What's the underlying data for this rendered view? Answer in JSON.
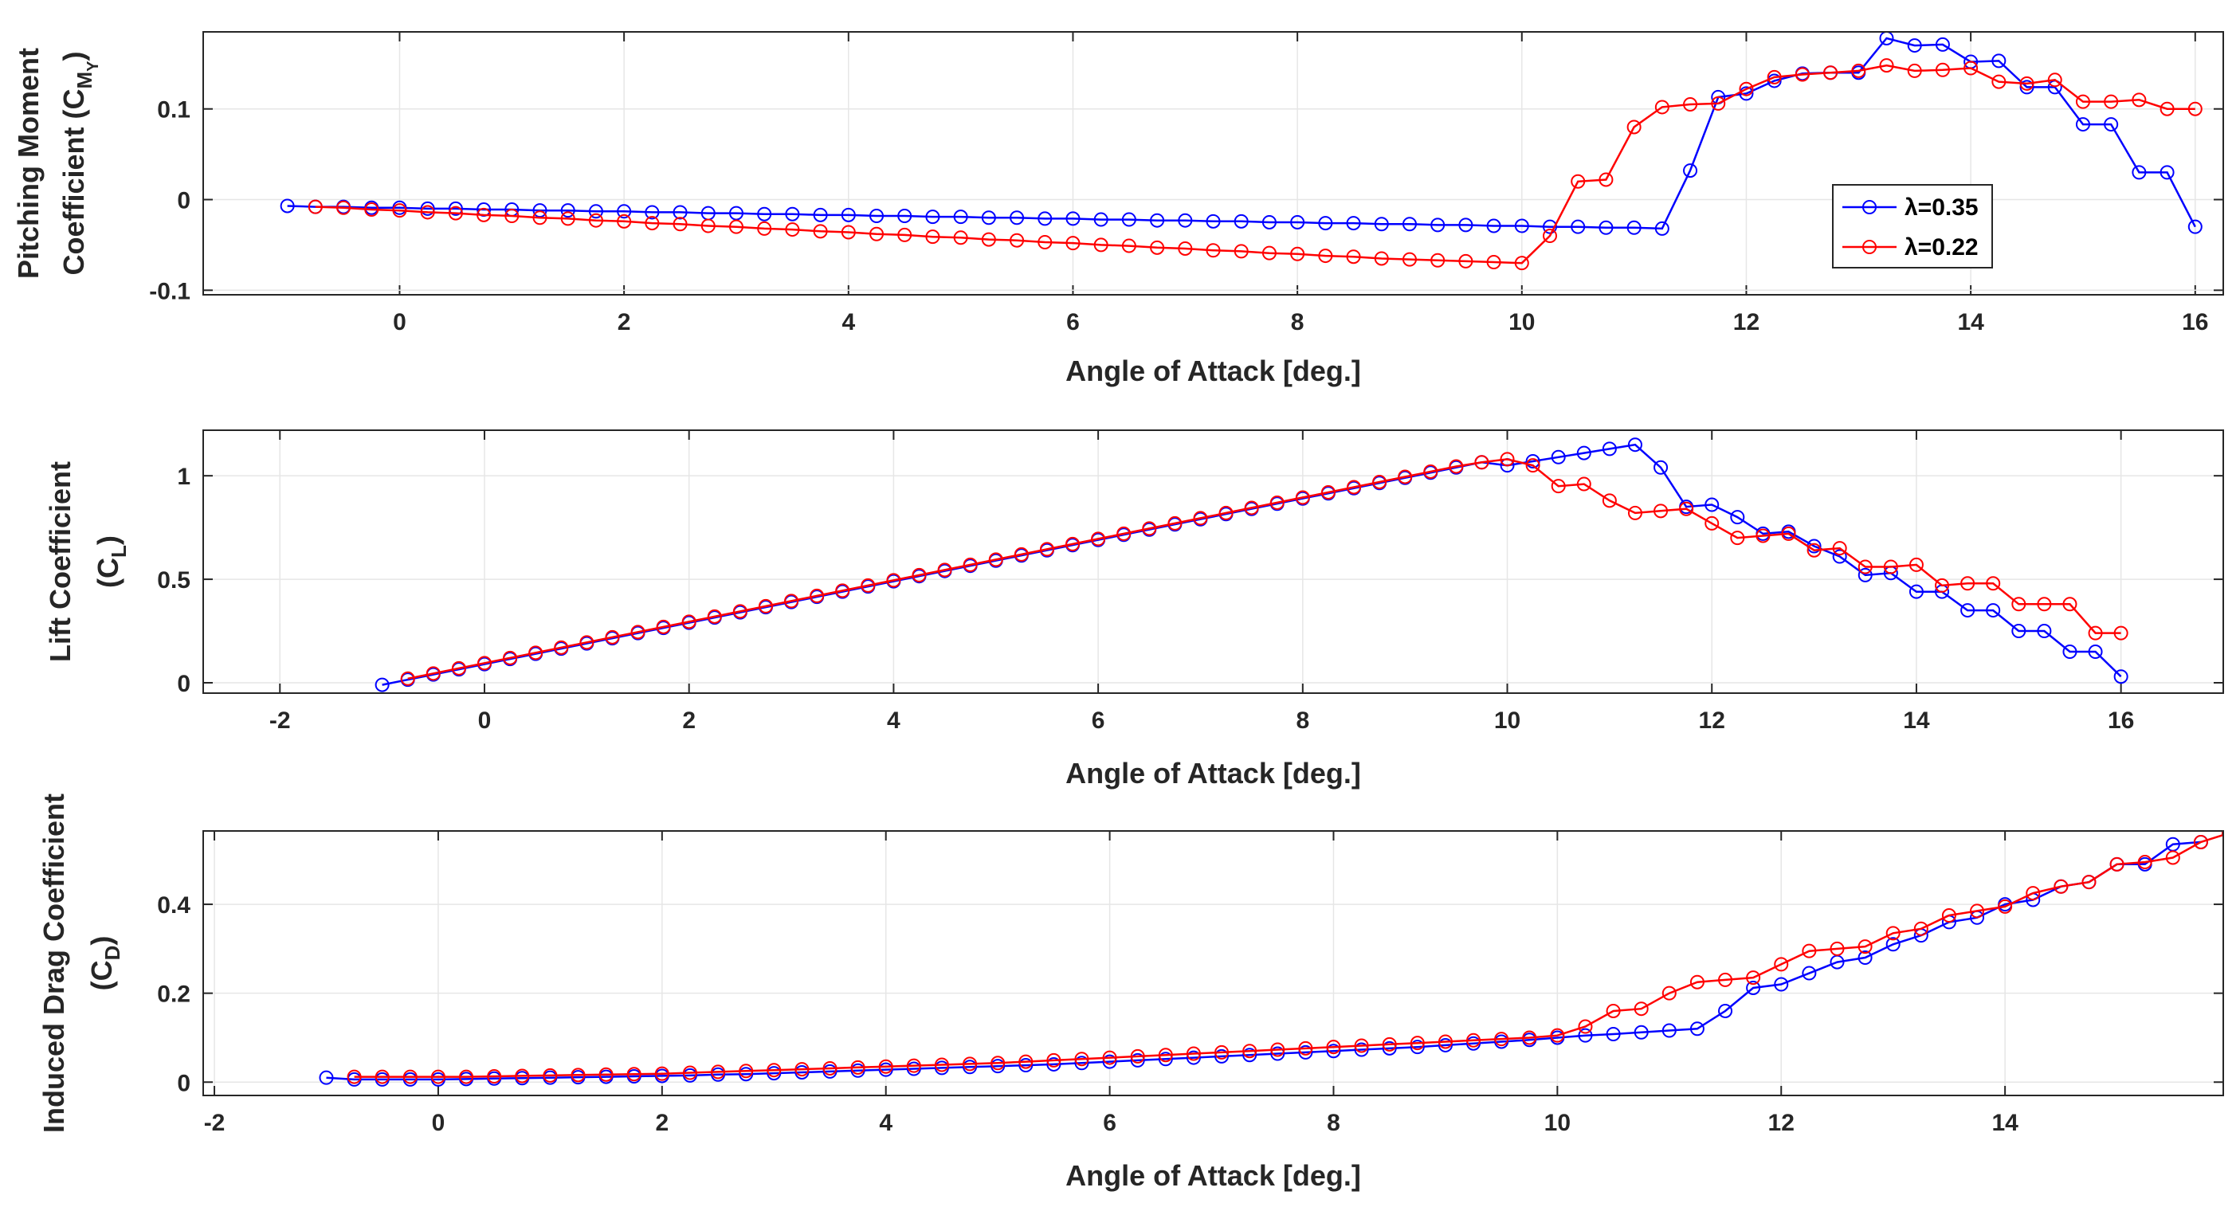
{
  "chart_data": [
    {
      "type": "line",
      "title": "",
      "xlabel": "Angle of Attack [deg.]",
      "ylabel_lines": [
        "Pitching Moment",
        "Coefficient (C",
        "M",
        "Y",
        ")"
      ],
      "xlim": [
        -1.75,
        16.25
      ],
      "ylim": [
        -0.105,
        0.185
      ],
      "xticks": [
        0,
        2,
        4,
        6,
        8,
        10,
        12,
        14,
        16
      ],
      "xtick_labels": [
        "0",
        "2",
        "4",
        "6",
        "8",
        "10",
        "12",
        "14",
        "16"
      ],
      "yticks": [
        -0.1,
        0,
        0.1
      ],
      "ytick_labels": [
        "-0.1",
        "0",
        "0.1"
      ],
      "grid": true,
      "legend": "inside-right",
      "legend_entries": [
        "λ=0.35",
        "λ=0.22"
      ],
      "series": [
        {
          "name": "λ=0.35",
          "color": "#0000ff",
          "x": [
            -1,
            -0.75,
            -0.5,
            -0.25,
            0,
            0.25,
            0.5,
            0.75,
            1,
            1.25,
            1.5,
            1.75,
            2,
            2.25,
            2.5,
            2.75,
            3,
            3.25,
            3.5,
            3.75,
            4,
            4.25,
            4.5,
            4.75,
            5,
            5.25,
            5.5,
            5.75,
            6,
            6.25,
            6.5,
            6.75,
            7,
            7.25,
            7.5,
            7.75,
            8,
            8.25,
            8.5,
            8.75,
            9,
            9.25,
            9.5,
            9.75,
            10,
            10.25,
            10.5,
            10.75,
            11,
            11.25,
            11.5,
            11.75,
            12,
            12.25,
            12.5,
            12.75,
            13,
            13.25,
            13.5,
            13.75,
            14,
            14.25,
            14.5,
            14.75,
            15,
            15.25,
            15.5,
            15.75,
            16
          ],
          "y": [
            -0.007,
            -0.008,
            -0.008,
            -0.009,
            -0.009,
            -0.01,
            -0.01,
            -0.011,
            -0.011,
            -0.012,
            -0.012,
            -0.013,
            -0.013,
            -0.014,
            -0.014,
            -0.015,
            -0.015,
            -0.016,
            -0.016,
            -0.017,
            -0.017,
            -0.018,
            -0.018,
            -0.019,
            -0.019,
            -0.02,
            -0.02,
            -0.021,
            -0.021,
            -0.022,
            -0.022,
            -0.023,
            -0.023,
            -0.024,
            -0.024,
            -0.025,
            -0.025,
            -0.026,
            -0.026,
            -0.027,
            -0.027,
            -0.028,
            -0.028,
            -0.029,
            -0.029,
            -0.03,
            -0.03,
            -0.031,
            -0.031,
            -0.032,
            0.032,
            0.113,
            0.117,
            0.131,
            0.139,
            0.14,
            0.14,
            0.178,
            0.17,
            0.171,
            0.152,
            0.153,
            0.124,
            0.124,
            0.083,
            0.083,
            0.03,
            0.03,
            -0.03
          ]
        },
        {
          "name": "λ=0.22",
          "color": "#ff0000",
          "x": [
            -0.75,
            -0.5,
            -0.25,
            0,
            0.25,
            0.5,
            0.75,
            1,
            1.25,
            1.5,
            1.75,
            2,
            2.25,
            2.5,
            2.75,
            3,
            3.25,
            3.5,
            3.75,
            4,
            4.25,
            4.5,
            4.75,
            5,
            5.25,
            5.5,
            5.75,
            6,
            6.25,
            6.5,
            6.75,
            7,
            7.25,
            7.5,
            7.75,
            8,
            8.25,
            8.5,
            8.75,
            9,
            9.25,
            9.5,
            9.75,
            10,
            10.25,
            10.5,
            10.75,
            11,
            11.25,
            11.5,
            11.75,
            12,
            12.25,
            12.5,
            12.75,
            13,
            13.25,
            13.5,
            13.75,
            14,
            14.25,
            14.5,
            14.75,
            15,
            15.25,
            15.5,
            15.75,
            16
          ],
          "y": [
            -0.008,
            -0.009,
            -0.011,
            -0.012,
            -0.014,
            -0.015,
            -0.017,
            -0.018,
            -0.02,
            -0.021,
            -0.023,
            -0.024,
            -0.026,
            -0.027,
            -0.029,
            -0.03,
            -0.032,
            -0.033,
            -0.035,
            -0.036,
            -0.038,
            -0.039,
            -0.041,
            -0.042,
            -0.044,
            -0.045,
            -0.047,
            -0.048,
            -0.05,
            -0.051,
            -0.053,
            -0.054,
            -0.056,
            -0.057,
            -0.059,
            -0.06,
            -0.062,
            -0.063,
            -0.065,
            -0.066,
            -0.067,
            -0.068,
            -0.069,
            -0.07,
            -0.04,
            0.02,
            0.022,
            0.08,
            0.102,
            0.105,
            0.106,
            0.122,
            0.135,
            0.138,
            0.14,
            0.142,
            0.148,
            0.142,
            0.143,
            0.145,
            0.13,
            0.128,
            0.132,
            0.108,
            0.108,
            0.11,
            0.1,
            0.1
          ]
        }
      ]
    },
    {
      "type": "line",
      "title": "",
      "xlabel": "Angle of Attack [deg.]",
      "ylabel_lines": [
        "Lift Coefficient",
        "(C",
        "L",
        ")"
      ],
      "xlim": [
        -2.75,
        17
      ],
      "ylim": [
        -0.05,
        1.22
      ],
      "xticks": [
        -2,
        0,
        2,
        4,
        6,
        8,
        10,
        12,
        14,
        16
      ],
      "xtick_labels": [
        "-2",
        "0",
        "2",
        "4",
        "6",
        "8",
        "10",
        "12",
        "14",
        "16"
      ],
      "yticks": [
        0,
        0.5,
        1
      ],
      "ytick_labels": [
        "0",
        "0.5",
        "1"
      ],
      "grid": true,
      "series": [
        {
          "name": "λ=0.35",
          "color": "#0000ff",
          "x": [
            -1,
            -0.75,
            -0.5,
            -0.25,
            0,
            0.25,
            0.5,
            0.75,
            1,
            1.25,
            1.5,
            1.75,
            2,
            2.25,
            2.5,
            2.75,
            3,
            3.25,
            3.5,
            3.75,
            4,
            4.25,
            4.5,
            4.75,
            5,
            5.25,
            5.5,
            5.75,
            6,
            6.25,
            6.5,
            6.75,
            7,
            7.25,
            7.5,
            7.75,
            8,
            8.25,
            8.5,
            8.75,
            9,
            9.25,
            9.5,
            9.75,
            10,
            10.25,
            10.5,
            10.75,
            11,
            11.25,
            11.5,
            11.75,
            12,
            12.25,
            12.5,
            12.75,
            13,
            13.25,
            13.5,
            13.75,
            14,
            14.25,
            14.5,
            14.75,
            15,
            15.25,
            15.5,
            15.75,
            16
          ],
          "y": [
            -0.01,
            0.015,
            0.04,
            0.065,
            0.09,
            0.115,
            0.14,
            0.165,
            0.19,
            0.215,
            0.24,
            0.265,
            0.29,
            0.315,
            0.34,
            0.365,
            0.39,
            0.415,
            0.44,
            0.465,
            0.49,
            0.515,
            0.54,
            0.565,
            0.59,
            0.615,
            0.64,
            0.665,
            0.69,
            0.715,
            0.74,
            0.765,
            0.79,
            0.815,
            0.84,
            0.865,
            0.89,
            0.915,
            0.94,
            0.965,
            0.99,
            1.015,
            1.04,
            1.065,
            1.05,
            1.07,
            1.09,
            1.11,
            1.13,
            1.15,
            1.04,
            0.85,
            0.86,
            0.8,
            0.72,
            0.73,
            0.66,
            0.61,
            0.52,
            0.53,
            0.44,
            0.44,
            0.35,
            0.35,
            0.25,
            0.25,
            0.15,
            0.15,
            0.03
          ]
        },
        {
          "name": "λ=0.22",
          "color": "#ff0000",
          "x": [
            -0.75,
            -0.5,
            -0.25,
            0,
            0.25,
            0.5,
            0.75,
            1,
            1.25,
            1.5,
            1.75,
            2,
            2.25,
            2.5,
            2.75,
            3,
            3.25,
            3.5,
            3.75,
            4,
            4.25,
            4.5,
            4.75,
            5,
            5.25,
            5.5,
            5.75,
            6,
            6.25,
            6.5,
            6.75,
            7,
            7.25,
            7.5,
            7.75,
            8,
            8.25,
            8.5,
            8.75,
            9,
            9.25,
            9.5,
            9.75,
            10,
            10.25,
            10.5,
            10.75,
            11,
            11.25,
            11.5,
            11.75,
            12,
            12.25,
            12.5,
            12.75,
            13,
            13.25,
            13.5,
            13.75,
            14,
            14.25,
            14.5,
            14.75,
            15,
            15.25,
            15.5,
            15.75,
            16
          ],
          "y": [
            0.02,
            0.045,
            0.07,
            0.095,
            0.12,
            0.145,
            0.17,
            0.195,
            0.22,
            0.245,
            0.27,
            0.295,
            0.32,
            0.345,
            0.37,
            0.395,
            0.42,
            0.445,
            0.47,
            0.495,
            0.52,
            0.545,
            0.57,
            0.595,
            0.62,
            0.645,
            0.67,
            0.695,
            0.72,
            0.745,
            0.77,
            0.795,
            0.82,
            0.845,
            0.87,
            0.895,
            0.92,
            0.945,
            0.97,
            0.995,
            1.02,
            1.045,
            1.065,
            1.08,
            1.05,
            0.95,
            0.96,
            0.88,
            0.82,
            0.83,
            0.84,
            0.77,
            0.7,
            0.71,
            0.72,
            0.64,
            0.65,
            0.56,
            0.56,
            0.57,
            0.47,
            0.48,
            0.48,
            0.38,
            0.38,
            0.38,
            0.24,
            0.24
          ]
        }
      ]
    },
    {
      "type": "line",
      "title": "",
      "xlabel": "Angle of Attack [deg.]",
      "ylabel_lines": [
        "Induced Drag Coefficient",
        "(C",
        "D",
        ")"
      ],
      "xlim": [
        -2.1,
        15.95
      ],
      "ylim": [
        -0.03,
        0.565
      ],
      "xticks": [
        -2,
        0,
        2,
        4,
        6,
        8,
        10,
        12,
        14
      ],
      "xtick_labels": [
        "-2",
        "0",
        "2",
        "4",
        "6",
        "8",
        "10",
        "12",
        "14"
      ],
      "yticks": [
        0,
        0.2,
        0.4
      ],
      "ytick_labels": [
        "0",
        "0.2",
        "0.4"
      ],
      "grid": true,
      "series": [
        {
          "name": "λ=0.35",
          "color": "#0000ff",
          "x": [
            -1,
            -0.75,
            -0.5,
            -0.25,
            0,
            0.25,
            0.5,
            0.75,
            1,
            1.25,
            1.5,
            1.75,
            2,
            2.25,
            2.5,
            2.75,
            3,
            3.25,
            3.5,
            3.75,
            4,
            4.25,
            4.5,
            4.75,
            5,
            5.25,
            5.5,
            5.75,
            6,
            6.25,
            6.5,
            6.75,
            7,
            7.25,
            7.5,
            7.75,
            8,
            8.25,
            8.5,
            8.75,
            9,
            9.25,
            9.5,
            9.75,
            10,
            10.25,
            10.5,
            10.75,
            11,
            11.25,
            11.5,
            11.75,
            12,
            12.25,
            12.5,
            12.75,
            13,
            13.25,
            13.5,
            13.75,
            14,
            14.25,
            14.5,
            14.75,
            15,
            15.25,
            15.5,
            15.75
          ],
          "y": [
            0.01,
            0.006,
            0.006,
            0.006,
            0.006,
            0.007,
            0.008,
            0.009,
            0.01,
            0.011,
            0.012,
            0.013,
            0.014,
            0.015,
            0.017,
            0.018,
            0.02,
            0.022,
            0.024,
            0.026,
            0.028,
            0.03,
            0.032,
            0.034,
            0.036,
            0.038,
            0.04,
            0.043,
            0.046,
            0.049,
            0.052,
            0.055,
            0.058,
            0.061,
            0.064,
            0.067,
            0.07,
            0.073,
            0.076,
            0.079,
            0.083,
            0.087,
            0.091,
            0.095,
            0.1,
            0.105,
            0.108,
            0.112,
            0.116,
            0.12,
            0.16,
            0.212,
            0.22,
            0.245,
            0.27,
            0.28,
            0.31,
            0.33,
            0.36,
            0.37,
            0.4,
            0.41,
            0.44,
            0.45,
            0.49,
            0.49,
            0.535,
            0.54
          ]
        },
        {
          "name": "λ=0.22",
          "color": "#ff0000",
          "x": [
            -0.75,
            -0.5,
            -0.25,
            0,
            0.25,
            0.5,
            0.75,
            1,
            1.25,
            1.5,
            1.75,
            2,
            2.25,
            2.5,
            2.75,
            3,
            3.25,
            3.5,
            3.75,
            4,
            4.25,
            4.5,
            4.75,
            5,
            5.25,
            5.5,
            5.75,
            6,
            6.25,
            6.5,
            6.75,
            7,
            7.25,
            7.5,
            7.75,
            8,
            8.25,
            8.5,
            8.75,
            9,
            9.25,
            9.5,
            9.75,
            10,
            10.25,
            10.5,
            10.75,
            11,
            11.25,
            11.5,
            11.75,
            12,
            12.25,
            12.5,
            12.75,
            13,
            13.25,
            13.5,
            13.75,
            14,
            14.25,
            14.5,
            14.75,
            15,
            15.25,
            15.5,
            15.75,
            16
          ],
          "y": [
            0.012,
            0.012,
            0.012,
            0.012,
            0.012,
            0.013,
            0.014,
            0.015,
            0.016,
            0.017,
            0.018,
            0.019,
            0.021,
            0.023,
            0.025,
            0.027,
            0.029,
            0.031,
            0.033,
            0.035,
            0.037,
            0.039,
            0.041,
            0.043,
            0.046,
            0.049,
            0.052,
            0.055,
            0.058,
            0.061,
            0.064,
            0.067,
            0.07,
            0.073,
            0.076,
            0.079,
            0.082,
            0.085,
            0.088,
            0.091,
            0.094,
            0.097,
            0.1,
            0.105,
            0.125,
            0.16,
            0.165,
            0.2,
            0.225,
            0.23,
            0.235,
            0.265,
            0.295,
            0.3,
            0.305,
            0.335,
            0.345,
            0.375,
            0.385,
            0.395,
            0.425,
            0.44,
            0.45,
            0.49,
            0.495,
            0.505,
            0.54,
            0.56
          ]
        }
      ]
    }
  ]
}
